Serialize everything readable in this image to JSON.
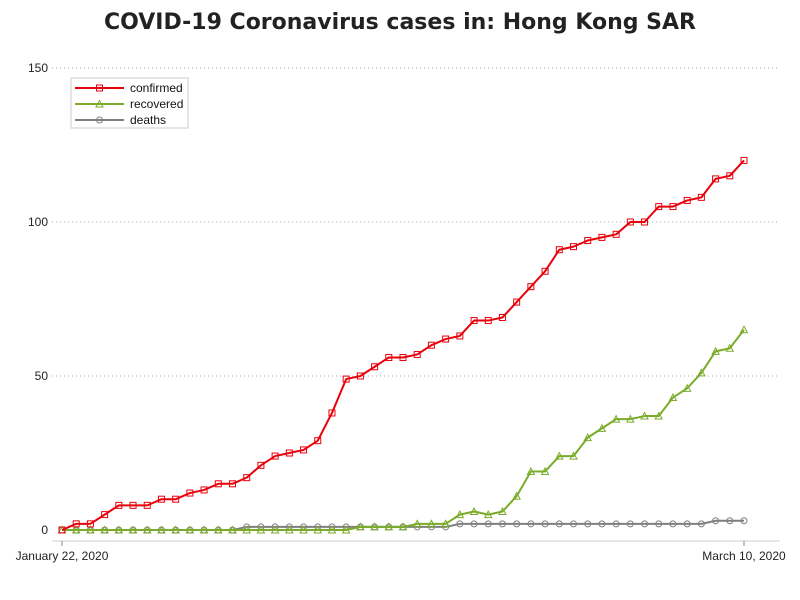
{
  "chart_data": {
    "type": "line",
    "title": "COVID-19 Coronavirus cases in: Hong Kong SAR",
    "xlabel": "",
    "ylabel": "",
    "x_tick_labels": [
      "January 22, 2020",
      "March 10, 2020"
    ],
    "y_ticks": [
      0,
      50,
      100,
      150
    ],
    "ylim": [
      0,
      150
    ],
    "grid": "horizontal dotted",
    "legend_position": "top-left",
    "series": [
      {
        "name": "confirmed",
        "color": "#e8000b",
        "marker": "square",
        "values": [
          0,
          2,
          2,
          5,
          8,
          8,
          8,
          10,
          10,
          12,
          13,
          15,
          15,
          17,
          21,
          24,
          25,
          26,
          29,
          38,
          49,
          50,
          53,
          56,
          56,
          57,
          60,
          62,
          63,
          68,
          68,
          69,
          74,
          79,
          84,
          91,
          92,
          94,
          95,
          96,
          100,
          100,
          105,
          105,
          107,
          108,
          114,
          115,
          120
        ]
      },
      {
        "name": "recovered",
        "color": "#7aab29",
        "marker": "triangle",
        "values": [
          0,
          0,
          0,
          0,
          0,
          0,
          0,
          0,
          0,
          0,
          0,
          0,
          0,
          0,
          0,
          0,
          0,
          0,
          0,
          0,
          0,
          1,
          1,
          1,
          1,
          2,
          2,
          2,
          5,
          6,
          5,
          6,
          11,
          19,
          19,
          24,
          24,
          30,
          33,
          36,
          36,
          37,
          37,
          43,
          46,
          51,
          58,
          59,
          65
        ]
      },
      {
        "name": "deaths",
        "color": "#7f7f7f",
        "marker": "circle",
        "values": [
          0,
          0,
          0,
          0,
          0,
          0,
          0,
          0,
          0,
          0,
          0,
          0,
          0,
          1,
          1,
          1,
          1,
          1,
          1,
          1,
          1,
          1,
          1,
          1,
          1,
          1,
          1,
          1,
          2,
          2,
          2,
          2,
          2,
          2,
          2,
          2,
          2,
          2,
          2,
          2,
          2,
          2,
          2,
          2,
          2,
          2,
          3,
          3,
          3
        ]
      }
    ]
  }
}
